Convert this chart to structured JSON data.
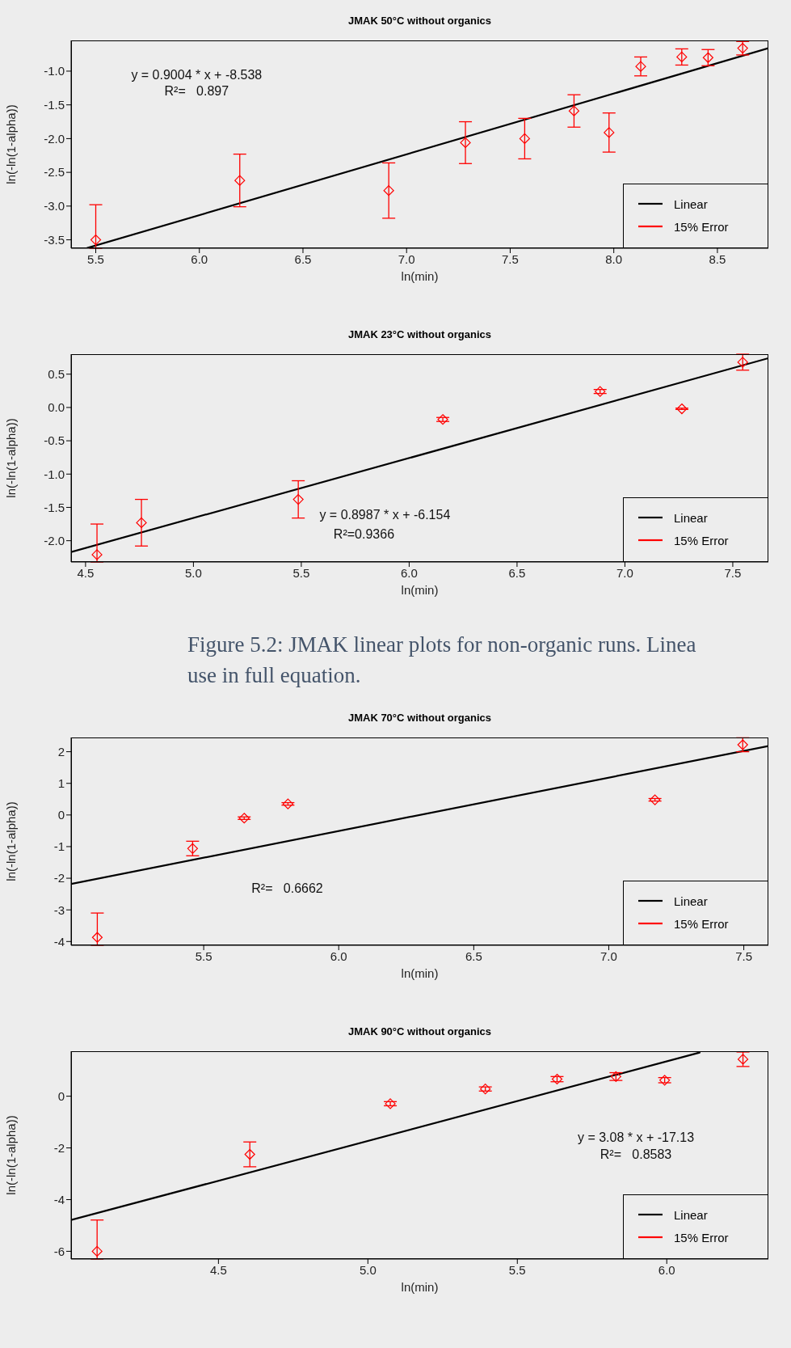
{
  "chart_data": [
    {
      "type": "scatter",
      "title": "JMAK 50°C without organics",
      "xlabel": "ln(min)",
      "ylabel": "ln(-ln(1-alpha))",
      "xlim": [
        5.381,
        8.746
      ],
      "ylim": [
        -3.625,
        -0.545
      ],
      "xticks": [
        5.5,
        {
          "value": 6,
          "label": "6.0"
        },
        6.5,
        {
          "value": 7,
          "label": "7.0"
        },
        7.5,
        {
          "value": 8,
          "label": "8.0"
        },
        8.5
      ],
      "yticks": [
        -3.5,
        {
          "value": -3,
          "label": "-3.0"
        },
        -2.5,
        {
          "value": -2,
          "label": "-2.0"
        },
        -1.5,
        {
          "value": -1,
          "label": "-1.0"
        }
      ],
      "legend": "bottom right",
      "annotations": [
        "y = 0.9004 * x + -8.538",
        "R²=   0.897"
      ],
      "series": [
        {
          "type": "line",
          "name": "Linear",
          "color": "#000000",
          "marker": "none",
          "x": [
            5.46,
            8.746
          ],
          "values": [
            -3.62,
            -0.66
          ]
        },
        {
          "name": "15% Error",
          "color": "#ff0000",
          "marker": "diamond",
          "x": [
            5.5,
            6.195,
            6.914,
            7.284,
            7.57,
            7.808,
            7.977,
            8.13,
            8.328,
            8.455,
            8.622
          ],
          "values": [
            -3.5,
            -2.62,
            -2.77,
            -2.06,
            -2.0,
            -1.59,
            -1.91,
            -0.93,
            -0.79,
            -0.8,
            -0.66
          ],
          "errors": [
            [
              -3.625,
              -2.98
            ],
            0.39,
            0.41,
            0.31,
            0.3,
            0.24,
            0.29,
            0.14,
            0.12,
            0.12,
            0.1
          ]
        }
      ]
    },
    {
      "type": "scatter",
      "title": "JMAK 23°C without organics",
      "xlabel": "ln(min)",
      "ylabel": "ln(-ln(1-alpha))",
      "xlim": [
        4.433,
        7.665
      ],
      "ylim": [
        -2.32,
        0.8
      ],
      "xticks": [
        4.5,
        {
          "value": 5,
          "label": "5.0"
        },
        5.5,
        {
          "value": 6,
          "label": "6.0"
        },
        6.5,
        {
          "value": 7,
          "label": "7.0"
        },
        7.5
      ],
      "yticks": [
        {
          "value": -2,
          "label": "-2.0"
        },
        -1.5,
        {
          "value": -1,
          "label": "-1.0"
        },
        -0.5,
        {
          "value": 0,
          "label": "0.0"
        },
        0.5
      ],
      "legend": "bottom right",
      "annotations": [
        "y = 0.8987 * x + -6.154",
        "R²=0.9366",
        "Figure 5.2: JMAK linear plots for non-organic runs. Linea",
        "use in full equation."
      ],
      "series": [
        {
          "type": "line",
          "name": "Linear",
          "color": "#000000",
          "marker": "none",
          "x": [
            4.433,
            7.665
          ],
          "values": [
            -2.17,
            0.74
          ]
        },
        {
          "name": "15% Error",
          "color": "#ff0000",
          "marker": "diamond",
          "x": [
            4.553,
            4.759,
            5.486,
            6.156,
            6.885,
            7.264,
            7.546
          ],
          "values": [
            -2.21,
            -1.73,
            -1.38,
            -0.18,
            0.24,
            -0.02,
            0.68
          ],
          "errors": [
            [
              -2.32,
              -1.75
            ],
            0.35,
            0.28,
            0.03,
            0.03,
            0.01,
            0.12
          ]
        }
      ]
    },
    {
      "type": "scatter",
      "title": "JMAK 70°C without organics",
      "xlabel": "ln(min)",
      "ylabel": "ln(-ln(1-alpha))",
      "xlim": [
        5.009,
        7.591
      ],
      "ylim": [
        -4.12,
        2.45
      ],
      "xticks": [
        5.5,
        {
          "value": 6,
          "label": "6.0"
        },
        6.5,
        {
          "value": 7,
          "label": "7.0"
        },
        7.5
      ],
      "yticks": [
        -4,
        -3,
        -2,
        -1,
        0,
        1,
        2
      ],
      "legend": "bottom right",
      "annotations": [
        "R²=   0.6662"
      ],
      "series": [
        {
          "type": "line",
          "name": "Linear",
          "color": "#000000",
          "marker": "none",
          "x": [
            5.009,
            7.591
          ],
          "values": [
            -2.18,
            2.18
          ]
        },
        {
          "name": "15% Error",
          "marker": "diamond",
          "color": "#ff0000",
          "x": [
            5.106,
            5.459,
            5.65,
            5.812,
            7.171,
            7.496
          ],
          "values": [
            -3.87,
            -1.06,
            -0.1,
            0.35,
            0.48,
            2.22
          ],
          "errors": [
            [
              -4.12,
              -3.1
            ],
            0.23,
            0.04,
            0.04,
            0.04,
            0.22
          ]
        }
      ]
    },
    {
      "type": "scatter",
      "title": "JMAK 90°C without organics",
      "xlabel": "ln(min)",
      "ylabel": "ln(-ln(1-alpha))",
      "xlim": [
        4.007,
        6.34
      ],
      "ylim": [
        -6.3,
        1.74
      ],
      "xticks": [
        4.5,
        {
          "value": 5,
          "label": "5.0"
        },
        5.5,
        {
          "value": 6,
          "label": "6.0"
        }
      ],
      "yticks": [
        -6,
        -4,
        -2,
        0
      ],
      "legend": "bottom right",
      "annotations": [
        "y = 3.08 * x + -17.13",
        "R²=   0.8583"
      ],
      "series": [
        {
          "type": "line",
          "name": "Linear",
          "color": "#000000",
          "marker": "none",
          "x": [
            4.007,
            6.11
          ],
          "values": [
            -4.79,
            1.69
          ]
        },
        {
          "name": "15% Error",
          "marker": "diamond",
          "color": "#ff0000",
          "x": [
            4.094,
            4.605,
            5.075,
            5.393,
            5.633,
            5.83,
            5.993,
            6.255
          ],
          "values": [
            -6.0,
            -2.25,
            -0.29,
            0.28,
            0.66,
            0.76,
            0.62,
            1.43
          ],
          "errors": [
            [
              -6.3,
              -4.79
            ],
            0.48,
            0.08,
            0.08,
            0.1,
            0.15,
            0.1,
            0.28
          ]
        }
      ]
    }
  ]
}
